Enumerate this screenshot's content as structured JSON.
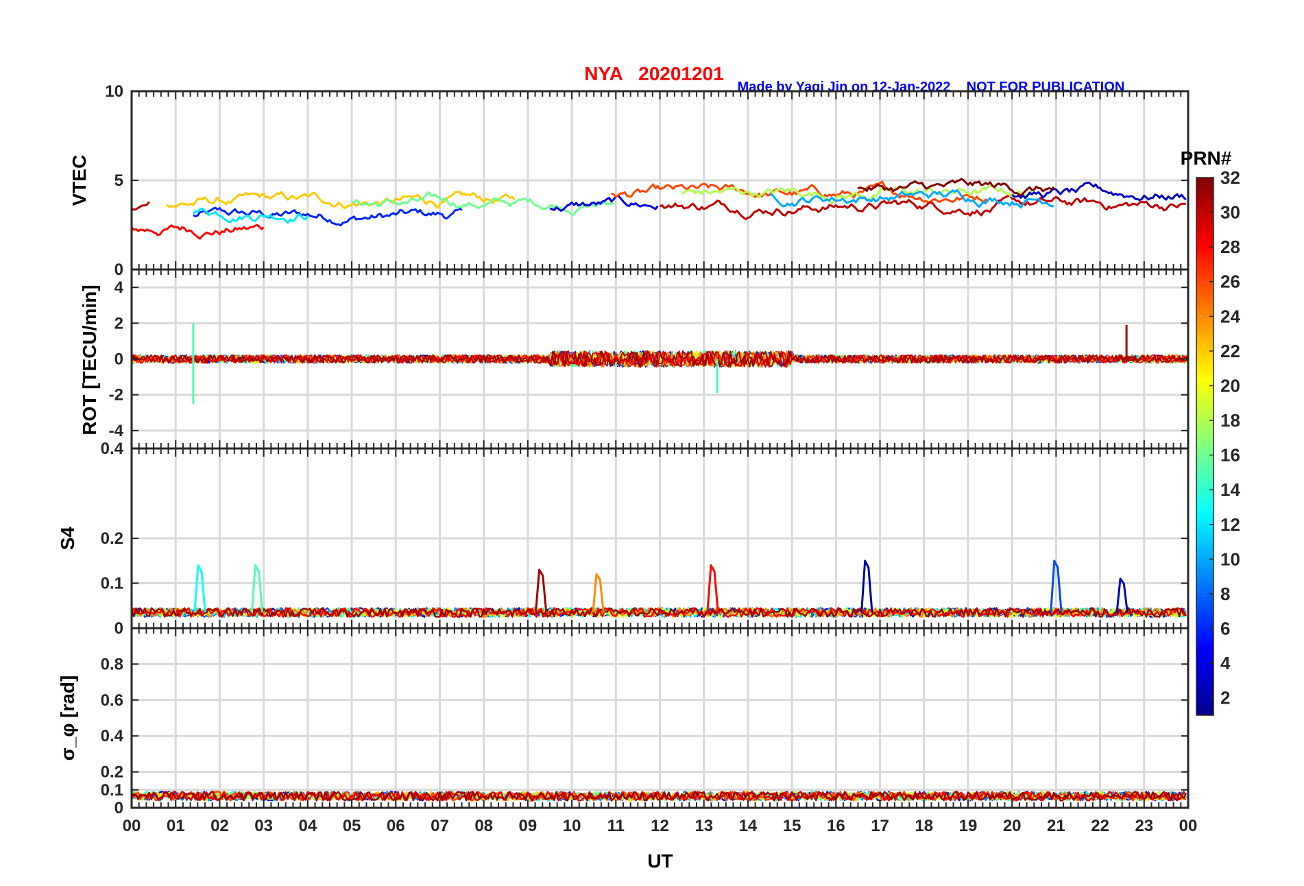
{
  "figure": {
    "station_title": "NYA   20201201",
    "credit": "Made by Yaqi Jin on 12-Jan-2022",
    "notice": "NOT FOR PUBLICATION",
    "xlabel": "UT",
    "xticks": [
      "00",
      "01",
      "02",
      "03",
      "04",
      "05",
      "06",
      "07",
      "08",
      "09",
      "10",
      "11",
      "12",
      "13",
      "14",
      "15",
      "16",
      "17",
      "18",
      "19",
      "20",
      "21",
      "22",
      "23",
      "00"
    ],
    "colorbar": {
      "title": "PRN#",
      "min": 1,
      "max": 32,
      "ticks": [
        "2",
        "4",
        "6",
        "8",
        "10",
        "12",
        "14",
        "16",
        "18",
        "20",
        "22",
        "24",
        "26",
        "28",
        "30",
        "32"
      ],
      "colormap": "jet"
    }
  },
  "chart_data": [
    {
      "type": "line",
      "id": "vtec",
      "ylabel": "VTEC",
      "ylim": [
        0,
        10
      ],
      "yticks": [
        0,
        5,
        10
      ],
      "ytick_labels": [
        "0",
        "5",
        "10"
      ],
      "xlim": [
        0,
        24
      ],
      "grid": true,
      "series_summary": [
        {
          "prn": 6,
          "from": 1.4,
          "to": 7.5,
          "level": 3.0
        },
        {
          "prn": 30,
          "from": 0.0,
          "to": 0.4,
          "level": 3.6
        },
        {
          "prn": 28,
          "from": 0.0,
          "to": 3.0,
          "level": 2.3
        },
        {
          "prn": 22,
          "from": 0.8,
          "to": 8.7,
          "level": 3.8
        },
        {
          "prn": 12,
          "from": 1.4,
          "to": 4.0,
          "level": 3.3
        },
        {
          "prn": 16,
          "from": 5.0,
          "to": 11.0,
          "level": 3.7
        },
        {
          "prn": 4,
          "from": 9.5,
          "to": 12.0,
          "level": 3.6
        },
        {
          "prn": 26,
          "from": 10.9,
          "to": 19.5,
          "level": 4.2
        },
        {
          "prn": 30,
          "from": 12.0,
          "to": 24.0,
          "level": 3.6
        },
        {
          "prn": 18,
          "from": 12.5,
          "to": 20.5,
          "level": 4.3
        },
        {
          "prn": 10,
          "from": 14.5,
          "to": 21.0,
          "level": 4.1
        },
        {
          "prn": 3,
          "from": 20.0,
          "to": 24.0,
          "level": 4.2
        },
        {
          "prn": 32,
          "from": 16.5,
          "to": 21.0,
          "level": 4.5
        }
      ]
    },
    {
      "type": "line",
      "id": "rot",
      "ylabel": "ROT [TECU/min]",
      "ylim": [
        -5,
        5
      ],
      "yticks": [
        -4,
        -2,
        0,
        2,
        4
      ],
      "ytick_labels": [
        "-4",
        "-2",
        "0",
        "2",
        "4"
      ],
      "xlim": [
        0,
        24
      ],
      "grid": true,
      "notable_spikes": [
        {
          "ut": 1.4,
          "value": 2.0,
          "prn": 15
        },
        {
          "ut": 1.4,
          "value": -2.5,
          "prn": 15
        },
        {
          "ut": 13.3,
          "value": -1.9,
          "prn": 15
        },
        {
          "ut": 22.6,
          "value": 1.9,
          "prn": 31
        }
      ]
    },
    {
      "type": "line",
      "id": "s4",
      "ylabel": "S4",
      "ylim": [
        0,
        0.4
      ],
      "yticks": [
        0,
        0.1,
        0.2,
        0.4
      ],
      "ytick_labels": [
        "0",
        "0.1",
        "0.2",
        "0.4"
      ],
      "xlim": [
        0,
        24
      ],
      "grid": true,
      "baseline": 0.035,
      "notable_peaks": [
        {
          "ut": 1.55,
          "value": 0.14,
          "prn": 13
        },
        {
          "ut": 2.85,
          "value": 0.14,
          "prn": 15
        },
        {
          "ut": 9.3,
          "value": 0.13,
          "prn": 31
        },
        {
          "ut": 10.6,
          "value": 0.12,
          "prn": 24
        },
        {
          "ut": 13.2,
          "value": 0.14,
          "prn": 28
        },
        {
          "ut": 16.7,
          "value": 0.15,
          "prn": 2
        },
        {
          "ut": 21.0,
          "value": 0.15,
          "prn": 7
        },
        {
          "ut": 22.5,
          "value": 0.11,
          "prn": 3
        }
      ]
    },
    {
      "type": "line",
      "id": "sigma_phi",
      "ylabel": "σ_φ [rad]",
      "ylim": [
        0,
        1
      ],
      "yticks": [
        0,
        0.1,
        0.2,
        0.4,
        0.6,
        0.8
      ],
      "ytick_labels": [
        "0",
        "0.1",
        "0.2",
        "0.4",
        "0.6",
        "0.8"
      ],
      "xlim": [
        0,
        24
      ],
      "grid": true,
      "baseline": 0.06
    }
  ]
}
